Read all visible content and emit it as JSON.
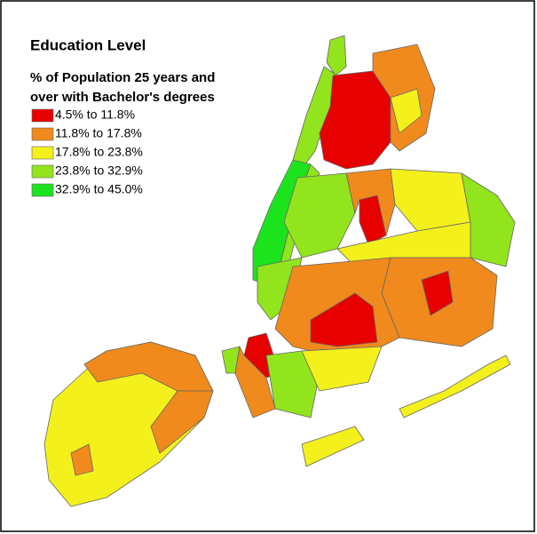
{
  "title": "Education Level",
  "subtitle": [
    "% of Population 25 years and",
    "over with Bachelor's degrees"
  ],
  "legend": [
    {
      "label": "4.5% to 11.8%",
      "color": "#e60000"
    },
    {
      "label": "11.8% to 17.8%",
      "color": "#f08a1c"
    },
    {
      "label": "17.8% to 23.8%",
      "color": "#f3f01c"
    },
    {
      "label": "23.8% to 32.9%",
      "color": "#92e41c"
    },
    {
      "label": "32.9% to 45.0%",
      "color": "#1ce41c"
    }
  ]
}
